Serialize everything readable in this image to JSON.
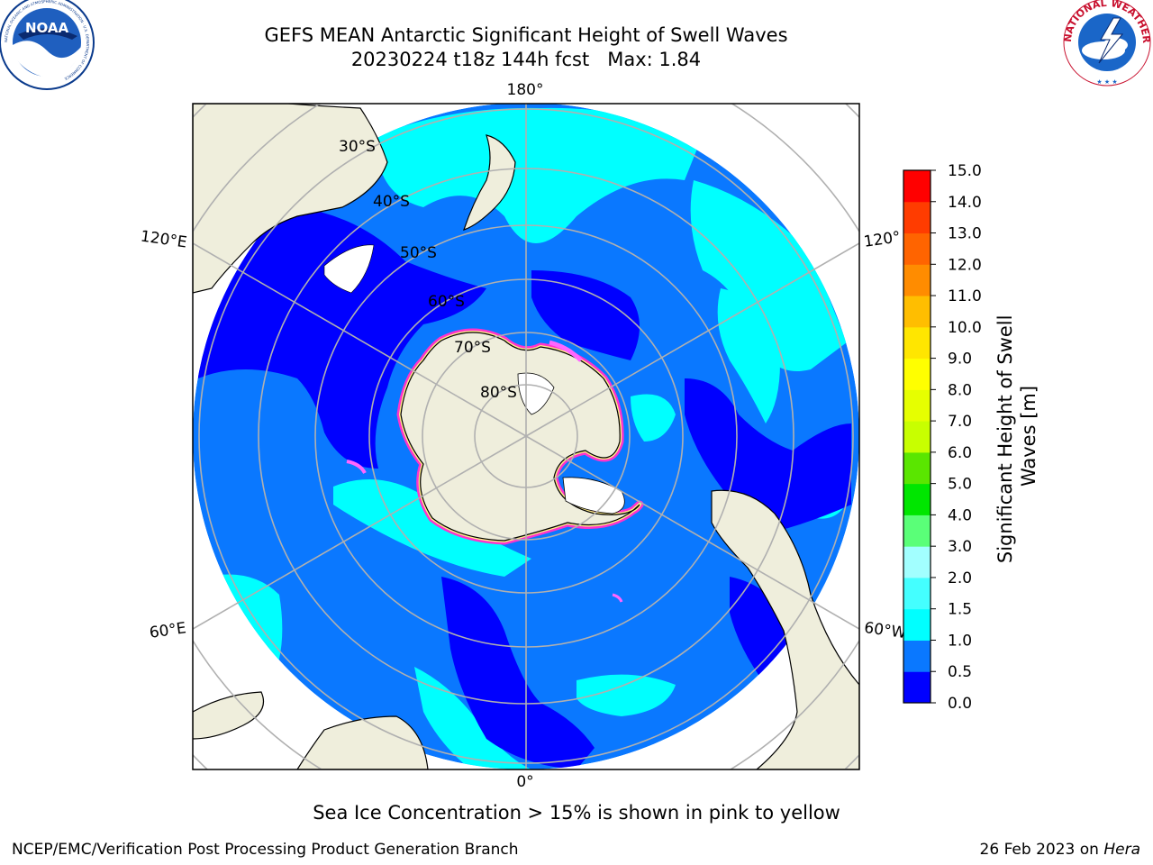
{
  "title": {
    "line1": "GEFS MEAN Antarctic Significant Height of Swell Waves",
    "line2": "20230224 t18z 144h fcst   Max: 1.84"
  },
  "logos": {
    "noaa": {
      "text": "NOAA",
      "ring_text": "NATIONAL OCEANIC AND ATMOSPHERIC ADMINISTRATION · U.S. DEPARTMENT OF COMMERCE"
    },
    "nws": {
      "ring_text": "NATIONAL WEATHER SERVICE"
    }
  },
  "map": {
    "projection": "south-polar-stereographic",
    "longitude_labels": {
      "top": "180°",
      "bottom": "0°",
      "upper_left": "120°E",
      "upper_right": "120°",
      "lower_left": "60°E",
      "lower_right": "60°W"
    },
    "latitude_labels": [
      "30°S",
      "40°S",
      "50°S",
      "60°S",
      "70°S",
      "80°S"
    ],
    "colors": {
      "land": "#efeedc",
      "ice_shelf": "#ffffff",
      "sea_ice": [
        "#ff33cc",
        "#ff66ff",
        "#ffee88"
      ],
      "gridline": "#b0b0b0"
    }
  },
  "colorbar": {
    "title_line1": "Significant Height of Swell",
    "title_line2": "Waves [m]",
    "tick_labels": [
      "0.0",
      "0.5",
      "1.0",
      "1.5",
      "2.0",
      "3.0",
      "4.0",
      "5.0",
      "6.0",
      "7.0",
      "8.0",
      "9.0",
      "10.0",
      "11.0",
      "12.0",
      "13.0",
      "14.0",
      "15.0"
    ],
    "level_colors": [
      "#0000ff",
      "#0a78ff",
      "#00ffff",
      "#44ffff",
      "#a2ffff",
      "#5aff78",
      "#00e600",
      "#5ae600",
      "#c8ff00",
      "#e6ff00",
      "#ffff00",
      "#ffe600",
      "#ffbe00",
      "#ff8c00",
      "#ff6400",
      "#ff3c00",
      "#ff0000"
    ]
  },
  "caption": "Sea Ice Concentration > 15% is shown in pink to yellow",
  "footer": {
    "left": "NCEP/EMC/Verification Post Processing Product Generation Branch",
    "right_date": "26 Feb 2023 on",
    "right_platform": "Hera"
  }
}
